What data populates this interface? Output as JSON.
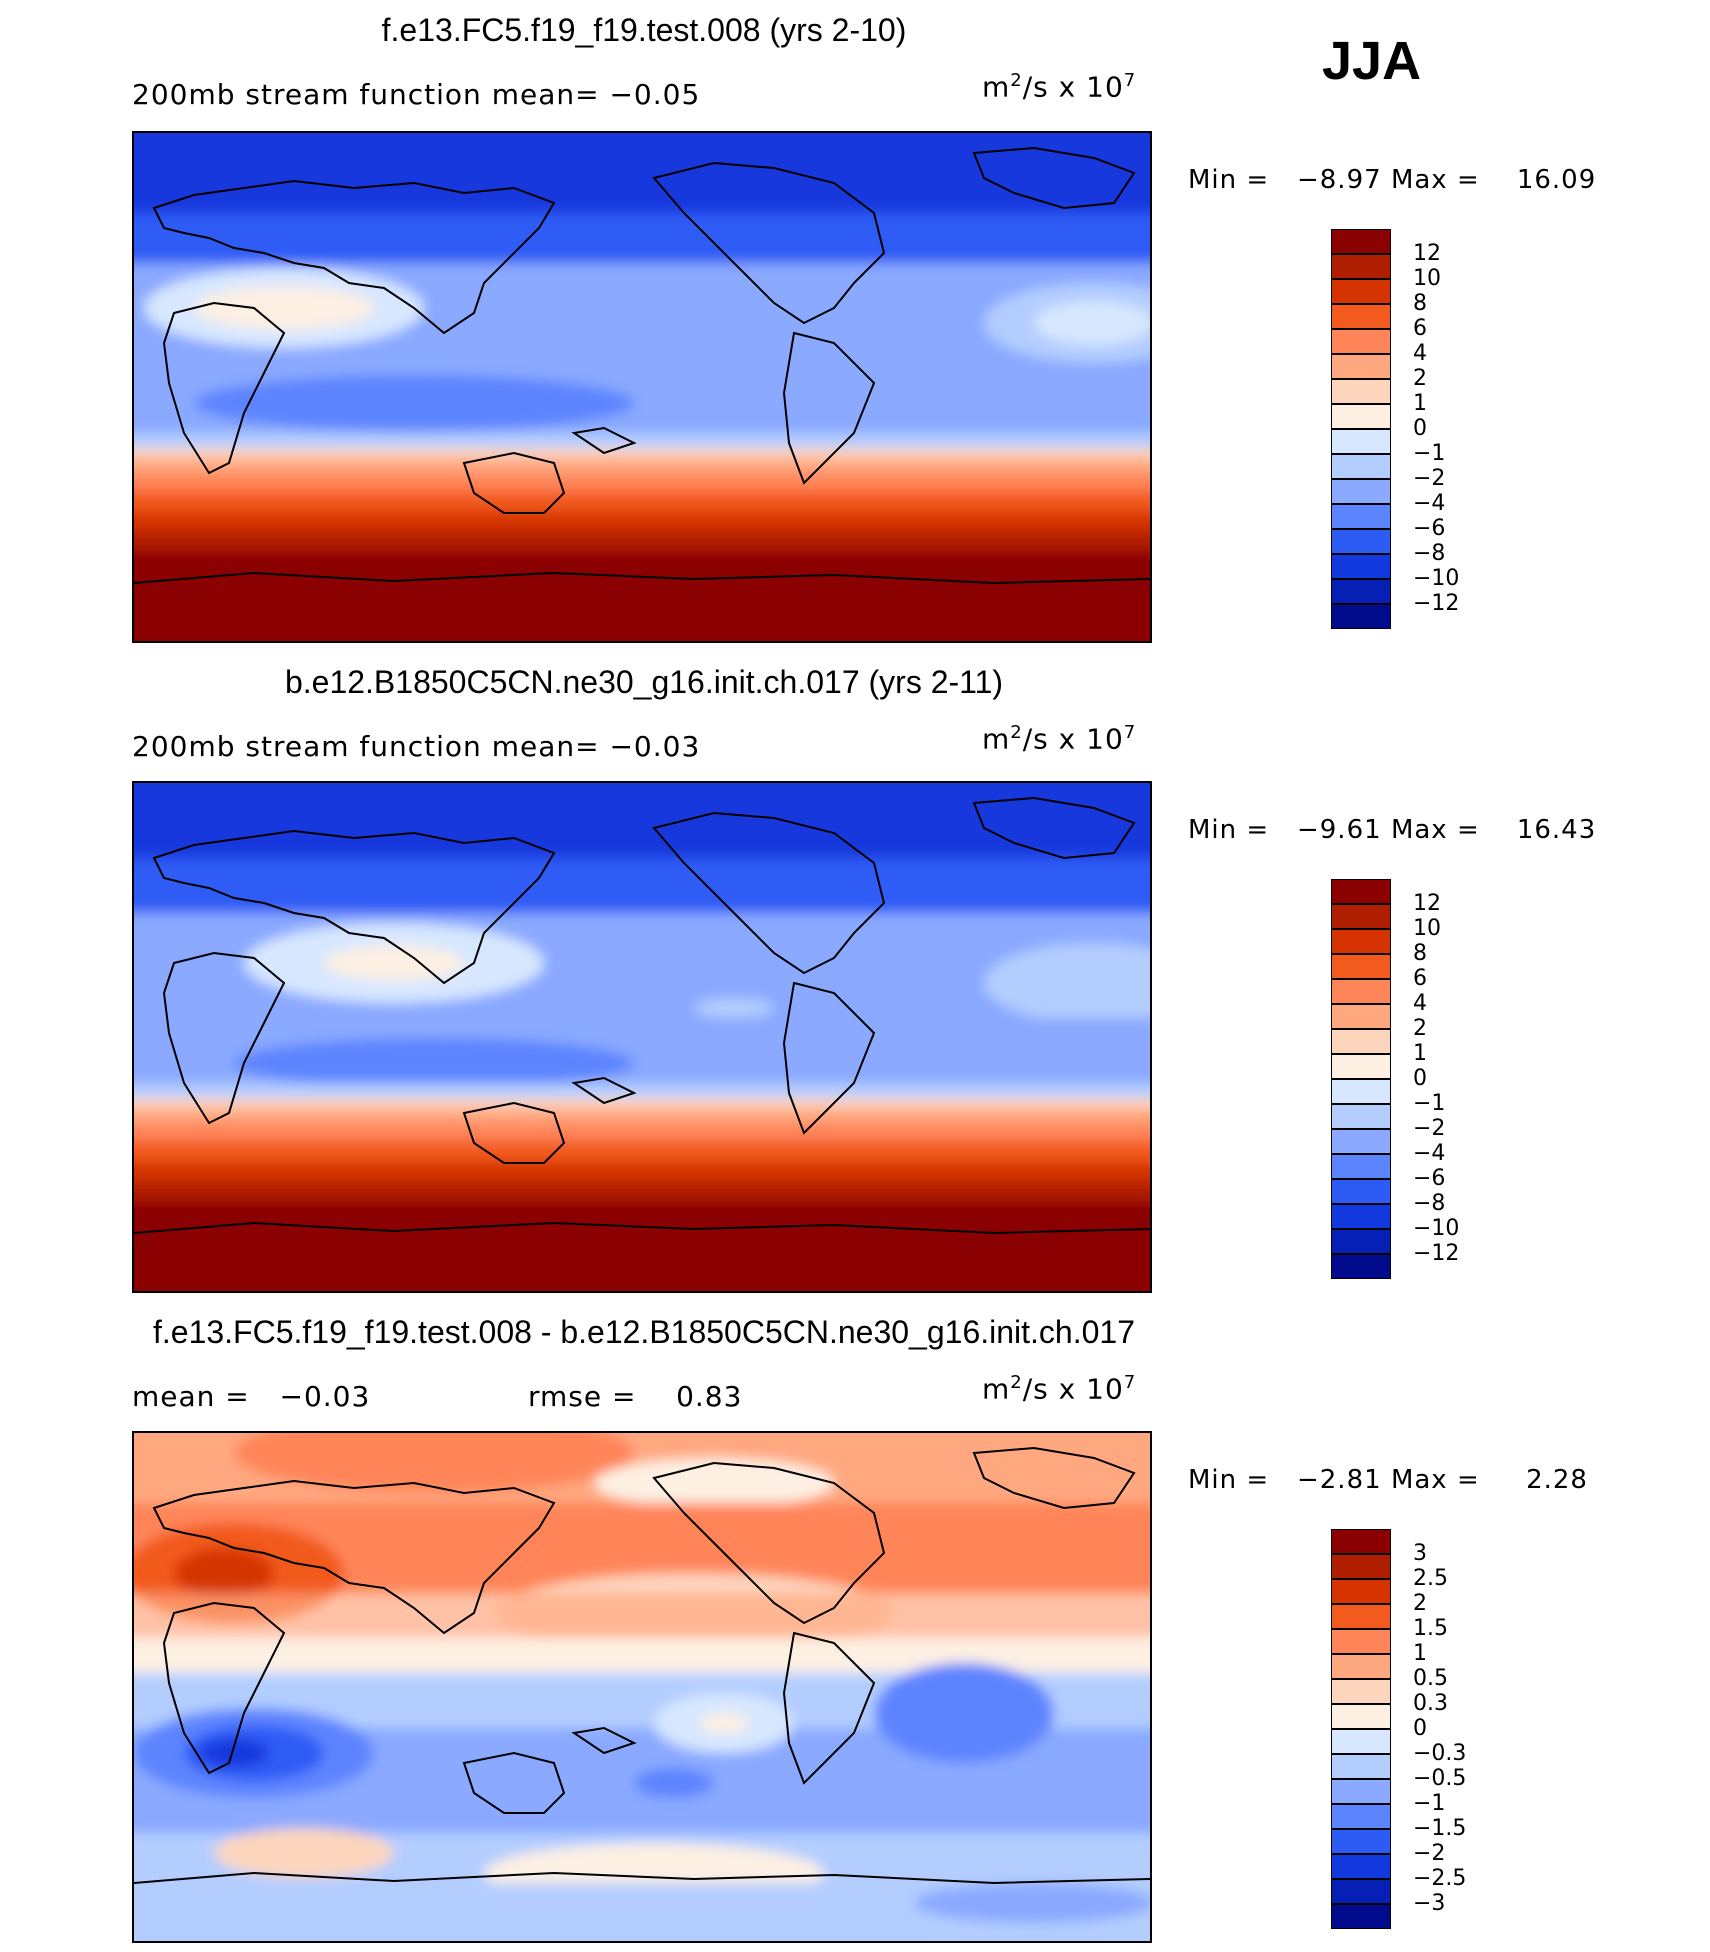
{
  "season": "JJA",
  "chart_data": [
    {
      "type": "heatmap",
      "title": "f.e13.FC5.f19_f19.test.008 (yrs 2-10)",
      "subtitle": "200mb stream function   mean=  −0.05",
      "units_base": "m",
      "units_exp1": "2",
      "units_mid": "/s  x  10",
      "units_exp2": "7",
      "min_label": "Min  =",
      "min_value": "−8.97",
      "max_label": "Max  =",
      "max_value": "16.09",
      "mean": -0.05,
      "min": -8.97,
      "max": 16.09,
      "levels": [
        "12",
        "10",
        "8",
        "6",
        "4",
        "2",
        "1",
        "0",
        "−1",
        "−2",
        "−4",
        "−6",
        "−8",
        "−10",
        "−12"
      ],
      "colors": [
        "#8b0000",
        "#b01e00",
        "#d53400",
        "#f25a1e",
        "#ff8559",
        "#ffa880",
        "#fdd5bd",
        "#fdf0e3",
        "#d7e7ff",
        "#b3cdff",
        "#8aa9ff",
        "#5d84ff",
        "#2d5cf5",
        "#1239dd",
        "#0620b5",
        "#000c8b"
      ]
    },
    {
      "type": "heatmap",
      "title": "b.e12.B1850C5CN.ne30_g16.init.ch.017 (yrs 2-11)",
      "subtitle": "200mb stream function   mean=  −0.03",
      "units_base": "m",
      "units_exp1": "2",
      "units_mid": "/s  x  10",
      "units_exp2": "7",
      "min_label": "Min  =",
      "min_value": "−9.61",
      "max_label": "Max  =",
      "max_value": "16.43",
      "mean": -0.03,
      "min": -9.61,
      "max": 16.43,
      "levels": [
        "12",
        "10",
        "8",
        "6",
        "4",
        "2",
        "1",
        "0",
        "−1",
        "−2",
        "−4",
        "−6",
        "−8",
        "−10",
        "−12"
      ],
      "colors": [
        "#8b0000",
        "#b01e00",
        "#d53400",
        "#f25a1e",
        "#ff8559",
        "#ffa880",
        "#fdd5bd",
        "#fdf0e3",
        "#d7e7ff",
        "#b3cdff",
        "#8aa9ff",
        "#5d84ff",
        "#2d5cf5",
        "#1239dd",
        "#0620b5",
        "#000c8b"
      ]
    },
    {
      "type": "heatmap",
      "title": "f.e13.FC5.f19_f19.test.008 - b.e12.B1850C5CN.ne30_g16.init.ch.017",
      "mean_label": "mean  =",
      "mean_value": "−0.03",
      "rmse_label": "rmse  =",
      "rmse_value": "0.83",
      "units_base": "m",
      "units_exp1": "2",
      "units_mid": "/s  x  10",
      "units_exp2": "7",
      "min_label": "Min  =",
      "min_value": "−2.81",
      "max_label": "Max  =",
      "max_value": "2.28",
      "mean": -0.03,
      "rmse": 0.83,
      "min": -2.81,
      "max": 2.28,
      "levels": [
        "3",
        "2.5",
        "2",
        "1.5",
        "1",
        "0.5",
        "0.3",
        "0",
        "−0.3",
        "−0.5",
        "−1",
        "−1.5",
        "−2",
        "−2.5",
        "−3"
      ],
      "colors": [
        "#8b0000",
        "#b01e00",
        "#d53400",
        "#f25a1e",
        "#ff8559",
        "#ffa880",
        "#fdd5bd",
        "#fdf0e3",
        "#d7e7ff",
        "#b3cdff",
        "#8aa9ff",
        "#5d84ff",
        "#2d5cf5",
        "#1239dd",
        "#0620b5",
        "#000c8b"
      ]
    }
  ]
}
